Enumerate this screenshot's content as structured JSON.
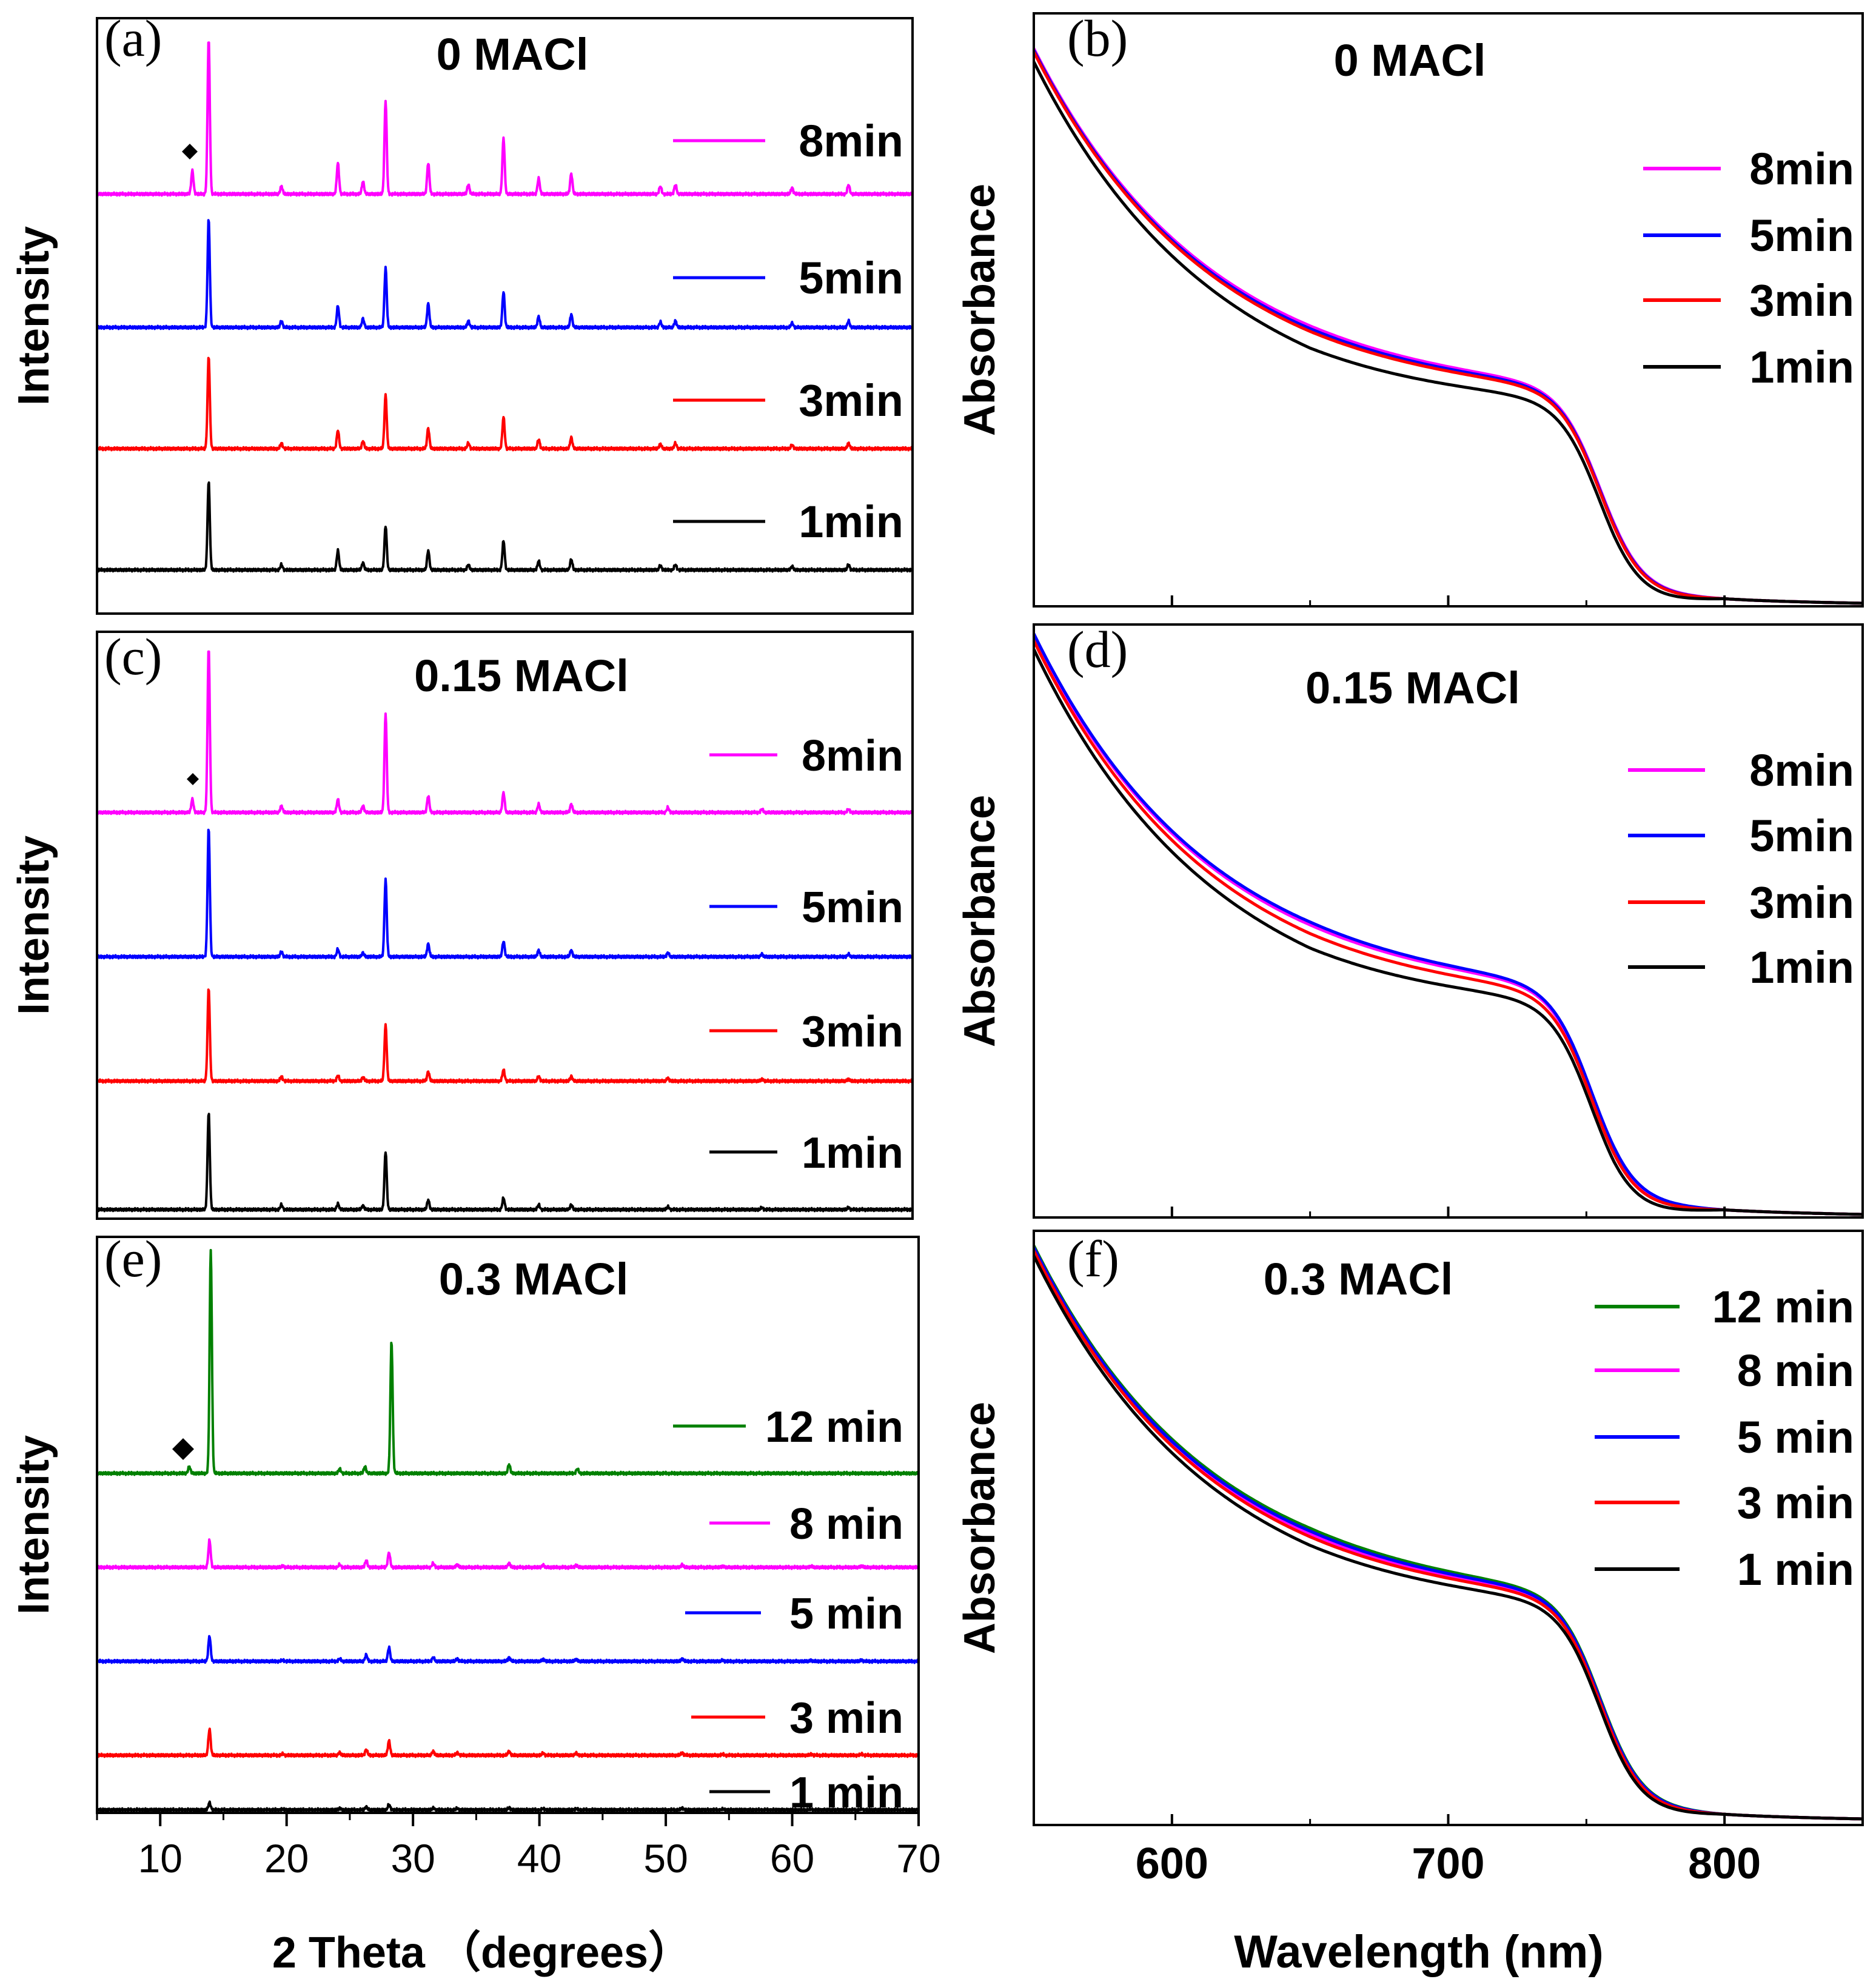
{
  "colors": {
    "c1": "#000000",
    "c3": "#ff0000",
    "c5": "#0000ff",
    "c8": "#ff00ff",
    "c12": "#008000",
    "frame": "#000000"
  },
  "axes": {
    "xrd_xlabel": "2 Theta （degrees）",
    "xrd_ylabel": "Intensity",
    "xrd_xlim": [
      5,
      70
    ],
    "xrd_xticks": [
      "10",
      "20",
      "30",
      "40",
      "50",
      "60",
      "70"
    ],
    "abs_xlabel": "Wavelength (nm)",
    "abs_ylabel": "Absorbance",
    "abs_xlim": [
      550,
      850
    ],
    "abs_xticks": [
      "600",
      "700",
      "800"
    ]
  },
  "chart_data": [
    {
      "panel": "(a)",
      "type": "line",
      "title": "0 MACl",
      "xlabel": "2 Theta （degrees）",
      "ylabel": "Intensity",
      "xlim": [
        5,
        70
      ],
      "series": [
        {
          "name": "8min",
          "key": "c8",
          "scale": 1.0,
          "peaks": [
            [
              12.6,
              0.15
            ],
            [
              13.9,
              1.0
            ],
            [
              19.7,
              0.05
            ],
            [
              24.2,
              0.2
            ],
            [
              26.2,
              0.08
            ],
            [
              28.0,
              0.6
            ],
            [
              31.4,
              0.2
            ],
            [
              34.6,
              0.06
            ],
            [
              37.4,
              0.36
            ],
            [
              40.2,
              0.1
            ],
            [
              42.8,
              0.13
            ],
            [
              49.9,
              0.05
            ],
            [
              51.1,
              0.06
            ],
            [
              60.4,
              0.04
            ],
            [
              64.9,
              0.06
            ]
          ]
        },
        {
          "name": "5min",
          "key": "c5",
          "scale": 0.96,
          "peaks": [
            [
              13.9,
              1.0
            ],
            [
              19.7,
              0.06
            ],
            [
              24.2,
              0.2
            ],
            [
              26.2,
              0.08
            ],
            [
              28.0,
              0.55
            ],
            [
              31.4,
              0.22
            ],
            [
              34.6,
              0.06
            ],
            [
              37.4,
              0.33
            ],
            [
              40.2,
              0.1
            ],
            [
              42.8,
              0.12
            ],
            [
              49.9,
              0.05
            ],
            [
              51.1,
              0.06
            ],
            [
              60.4,
              0.04
            ],
            [
              64.9,
              0.06
            ]
          ]
        },
        {
          "name": "3min",
          "key": "c3",
          "scale": 0.92,
          "peaks": [
            [
              13.9,
              1.0
            ],
            [
              19.7,
              0.06
            ],
            [
              24.2,
              0.2
            ],
            [
              26.2,
              0.08
            ],
            [
              28.0,
              0.58
            ],
            [
              31.4,
              0.22
            ],
            [
              34.6,
              0.06
            ],
            [
              37.4,
              0.34
            ],
            [
              40.2,
              0.1
            ],
            [
              42.8,
              0.12
            ],
            [
              49.9,
              0.05
            ],
            [
              51.1,
              0.06
            ],
            [
              60.4,
              0.04
            ],
            [
              64.9,
              0.06
            ]
          ]
        },
        {
          "name": "1min",
          "key": "c1",
          "scale": 0.88,
          "peaks": [
            [
              13.9,
              1.0
            ],
            [
              19.7,
              0.06
            ],
            [
              24.2,
              0.22
            ],
            [
              26.2,
              0.08
            ],
            [
              28.0,
              0.5
            ],
            [
              31.4,
              0.22
            ],
            [
              34.6,
              0.06
            ],
            [
              37.4,
              0.33
            ],
            [
              40.2,
              0.1
            ],
            [
              42.8,
              0.12
            ],
            [
              49.9,
              0.05
            ],
            [
              51.1,
              0.06
            ],
            [
              60.4,
              0.04
            ],
            [
              64.9,
              0.06
            ]
          ]
        }
      ]
    },
    {
      "panel": "(b)",
      "type": "line",
      "title": "0 MACl",
      "xlabel": "Wavelength (nm)",
      "ylabel": "Absorbance",
      "xlim": [
        550,
        850
      ],
      "edge": 755,
      "series": [
        {
          "name": "8min",
          "key": "c8",
          "offset": 0.0
        },
        {
          "name": "5min",
          "key": "c5",
          "offset": -0.005
        },
        {
          "name": "3min",
          "key": "c3",
          "offset": -0.01
        },
        {
          "name": "1min",
          "key": "c1",
          "offset": -0.04
        }
      ]
    },
    {
      "panel": "(c)",
      "type": "line",
      "title": "0.15 MACl",
      "xlabel": "2 Theta （degrees）",
      "ylabel": "Intensity",
      "xlim": [
        5,
        70
      ],
      "series": [
        {
          "name": "8min",
          "key": "c8",
          "scale": 1.0,
          "peaks": [
            [
              12.6,
              0.08
            ],
            [
              13.9,
              1.0
            ],
            [
              19.7,
              0.04
            ],
            [
              24.2,
              0.08
            ],
            [
              26.2,
              0.04
            ],
            [
              28.0,
              0.6
            ],
            [
              31.4,
              0.1
            ],
            [
              37.4,
              0.12
            ],
            [
              40.2,
              0.05
            ],
            [
              42.8,
              0.05
            ],
            [
              50.5,
              0.03
            ],
            [
              58.0,
              0.02
            ],
            [
              64.9,
              0.02
            ]
          ]
        },
        {
          "name": "5min",
          "key": "c5",
          "scale": 1.0,
          "peaks": [
            [
              13.9,
              1.0
            ],
            [
              19.7,
              0.04
            ],
            [
              24.2,
              0.06
            ],
            [
              26.2,
              0.03
            ],
            [
              28.0,
              0.6
            ],
            [
              31.4,
              0.1
            ],
            [
              37.4,
              0.12
            ],
            [
              40.2,
              0.05
            ],
            [
              42.8,
              0.05
            ],
            [
              50.5,
              0.03
            ],
            [
              58.0,
              0.02
            ],
            [
              64.9,
              0.02
            ]
          ]
        },
        {
          "name": "3min",
          "key": "c3",
          "scale": 0.86,
          "peaks": [
            [
              13.9,
              1.0
            ],
            [
              19.7,
              0.05
            ],
            [
              24.2,
              0.06
            ],
            [
              26.2,
              0.04
            ],
            [
              28.0,
              0.6
            ],
            [
              31.4,
              0.1
            ],
            [
              37.4,
              0.12
            ],
            [
              40.2,
              0.05
            ],
            [
              42.8,
              0.05
            ],
            [
              50.5,
              0.03
            ],
            [
              58.0,
              0.02
            ],
            [
              64.9,
              0.02
            ]
          ]
        },
        {
          "name": "1min",
          "key": "c1",
          "scale": 0.86,
          "peaks": [
            [
              13.9,
              1.0
            ],
            [
              19.7,
              0.05
            ],
            [
              24.2,
              0.06
            ],
            [
              26.2,
              0.04
            ],
            [
              28.0,
              0.6
            ],
            [
              31.4,
              0.1
            ],
            [
              37.4,
              0.12
            ],
            [
              40.2,
              0.05
            ],
            [
              42.8,
              0.05
            ],
            [
              50.5,
              0.03
            ],
            [
              58.0,
              0.02
            ],
            [
              64.9,
              0.02
            ]
          ]
        }
      ]
    },
    {
      "panel": "(d)",
      "type": "line",
      "title": "0.15 MACl",
      "xlabel": "Wavelength (nm)",
      "ylabel": "Absorbance",
      "xlim": [
        550,
        850
      ],
      "edge": 752,
      "series": [
        {
          "name": "8min",
          "key": "c8",
          "offset": 0.0
        },
        {
          "name": "5min",
          "key": "c5",
          "offset": 0.005
        },
        {
          "name": "3min",
          "key": "c3",
          "offset": -0.015
        },
        {
          "name": "1min",
          "key": "c1",
          "offset": -0.04
        }
      ]
    },
    {
      "panel": "(e)",
      "type": "line",
      "title": "0.3 MACl",
      "xlabel": "2 Theta （degrees）",
      "ylabel": "Intensity",
      "xlim": [
        5,
        70
      ],
      "series": [
        {
          "name": "12 min",
          "key": "c12",
          "scale": 1.0,
          "peaks": [
            [
              12.3,
              0.03
            ],
            [
              14.0,
              1.0
            ],
            [
              24.2,
              0.02
            ],
            [
              26.2,
              0.03
            ],
            [
              28.3,
              0.59
            ],
            [
              37.6,
              0.04
            ],
            [
              43.0,
              0.02
            ]
          ]
        },
        {
          "name": "8 min",
          "key": "c8",
          "scale": 0.33,
          "peaks": [
            [
              13.9,
              1.0
            ],
            [
              19.7,
              0.05
            ],
            [
              24.2,
              0.1
            ],
            [
              26.3,
              0.25
            ],
            [
              28.1,
              0.55
            ],
            [
              31.6,
              0.15
            ],
            [
              33.5,
              0.1
            ],
            [
              37.6,
              0.15
            ],
            [
              40.3,
              0.08
            ],
            [
              42.9,
              0.08
            ],
            [
              51.3,
              0.1
            ],
            [
              54.5,
              0.04
            ],
            [
              61.5,
              0.04
            ],
            [
              65.5,
              0.05
            ]
          ]
        },
        {
          "name": "5 min",
          "key": "c5",
          "scale": 0.31,
          "peaks": [
            [
              13.9,
              1.0
            ],
            [
              19.7,
              0.05
            ],
            [
              24.2,
              0.1
            ],
            [
              26.3,
              0.25
            ],
            [
              28.1,
              0.55
            ],
            [
              31.6,
              0.15
            ],
            [
              33.5,
              0.1
            ],
            [
              37.6,
              0.15
            ],
            [
              40.3,
              0.08
            ],
            [
              42.9,
              0.08
            ],
            [
              51.3,
              0.1
            ],
            [
              54.5,
              0.04
            ],
            [
              61.5,
              0.04
            ],
            [
              65.5,
              0.05
            ]
          ]
        },
        {
          "name": "3 min",
          "key": "c3",
          "scale": 0.32,
          "peaks": [
            [
              13.9,
              1.0
            ],
            [
              19.7,
              0.05
            ],
            [
              24.2,
              0.1
            ],
            [
              26.3,
              0.22
            ],
            [
              28.1,
              0.55
            ],
            [
              31.6,
              0.15
            ],
            [
              33.5,
              0.1
            ],
            [
              37.6,
              0.15
            ],
            [
              40.3,
              0.08
            ],
            [
              42.9,
              0.08
            ],
            [
              51.3,
              0.1
            ],
            [
              54.5,
              0.04
            ],
            [
              61.5,
              0.04
            ],
            [
              65.5,
              0.05
            ]
          ]
        },
        {
          "name": "1 min",
          "key": "c1",
          "scale": 0.17,
          "peaks": [
            [
              13.9,
              1.0
            ],
            [
              19.7,
              0.1
            ],
            [
              24.2,
              0.2
            ],
            [
              26.3,
              0.4
            ],
            [
              28.1,
              0.75
            ],
            [
              31.6,
              0.25
            ],
            [
              33.5,
              0.2
            ],
            [
              37.6,
              0.3
            ],
            [
              40.3,
              0.15
            ],
            [
              42.9,
              0.15
            ],
            [
              51.3,
              0.25
            ],
            [
              54.5,
              0.08
            ],
            [
              61.5,
              0.08
            ],
            [
              65.5,
              0.1
            ]
          ]
        }
      ]
    },
    {
      "panel": "(f)",
      "type": "line",
      "title": "0.3 MACl",
      "xlabel": "Wavelength (nm)",
      "ylabel": "Absorbance",
      "xlim": [
        550,
        850
      ],
      "edge": 755,
      "series": [
        {
          "name": "12 min",
          "key": "c12",
          "offset": 0.01
        },
        {
          "name": "8 min",
          "key": "c8",
          "offset": 0.0
        },
        {
          "name": "5 min",
          "key": "c5",
          "offset": 0.005
        },
        {
          "name": "3 min",
          "key": "c3",
          "offset": -0.005
        },
        {
          "name": "1 min",
          "key": "c1",
          "offset": -0.02
        }
      ]
    }
  ]
}
